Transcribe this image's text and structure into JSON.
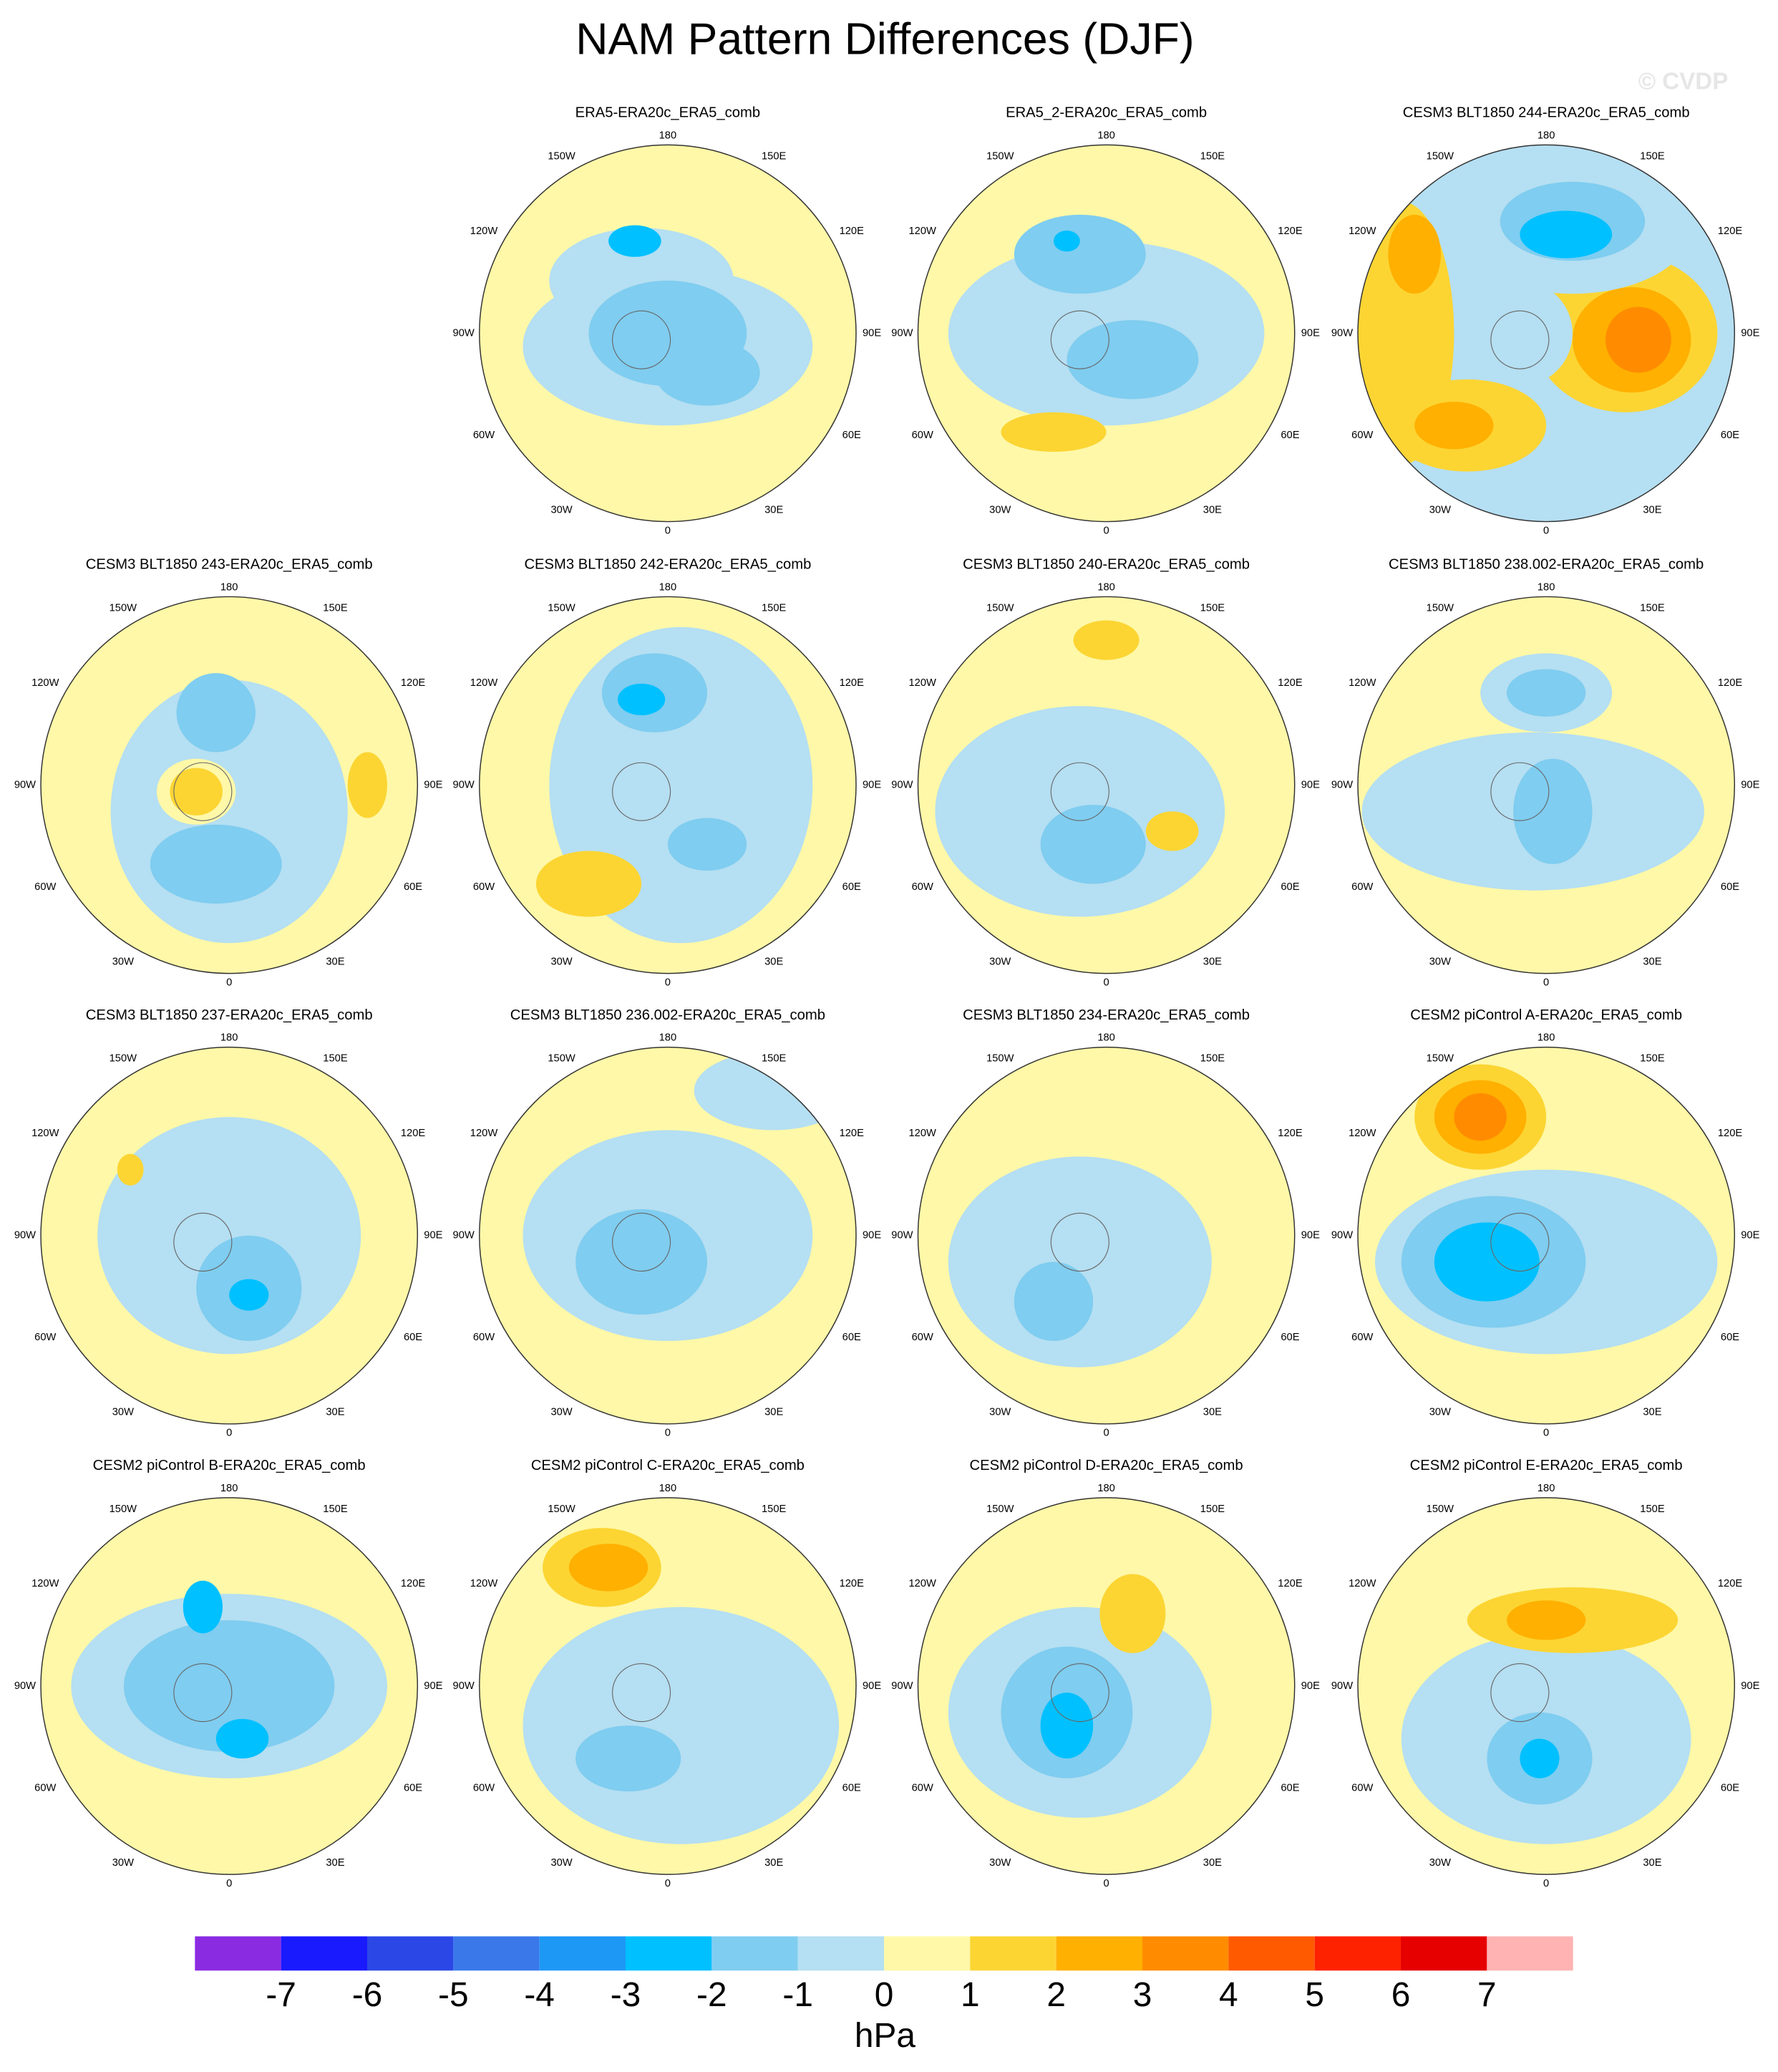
{
  "title": "NAM Pattern Differences (DJF)",
  "watermark": "© CVDP",
  "panels": [
    {
      "title": "ERA5-ERA20c_ERA5_comb"
    },
    {
      "title": "ERA5_2-ERA20c_ERA5_comb"
    },
    {
      "title": "CESM3 BLT1850 244-ERA20c_ERA5_comb"
    },
    {
      "title": "CESM3 BLT1850 243-ERA20c_ERA5_comb"
    },
    {
      "title": "CESM3 BLT1850 242-ERA20c_ERA5_comb"
    },
    {
      "title": "CESM3 BLT1850 240-ERA20c_ERA5_comb"
    },
    {
      "title": "CESM3 BLT1850 238.002-ERA20c_ERA5_comb"
    },
    {
      "title": "CESM3 BLT1850 237-ERA20c_ERA5_comb"
    },
    {
      "title": "CESM3 BLT1850 236.002-ERA20c_ERA5_comb"
    },
    {
      "title": "CESM3 BLT1850 234-ERA20c_ERA5_comb"
    },
    {
      "title": "CESM2 piControl A-ERA20c_ERA5_comb"
    },
    {
      "title": "CESM2 piControl B-ERA20c_ERA5_comb"
    },
    {
      "title": "CESM2 piControl C-ERA20c_ERA5_comb"
    },
    {
      "title": "CESM2 piControl D-ERA20c_ERA5_comb"
    },
    {
      "title": "CESM2 piControl E-ERA20c_ERA5_comb"
    }
  ],
  "longitude_labels": [
    "180",
    "150E",
    "120E",
    "90E",
    "60E",
    "30E",
    "0",
    "30W",
    "60W",
    "90W",
    "120W",
    "150W"
  ],
  "colorbar": {
    "levels": [
      -7,
      -6,
      -5,
      -4,
      -3,
      -2,
      -1,
      0,
      1,
      2,
      3,
      4,
      5,
      6,
      7
    ],
    "colors": [
      "#8a2be2",
      "#1a1aff",
      "#2b48e6",
      "#3a78ea",
      "#1e98f5",
      "#00c0ff",
      "#7fcdf0",
      "#b5dff2",
      "#fff8a8",
      "#fcd533",
      "#ffb000",
      "#ff8c00",
      "#ff5a00",
      "#ff2200",
      "#e60000",
      "#ffb3b3"
    ],
    "units": "hPa"
  }
}
